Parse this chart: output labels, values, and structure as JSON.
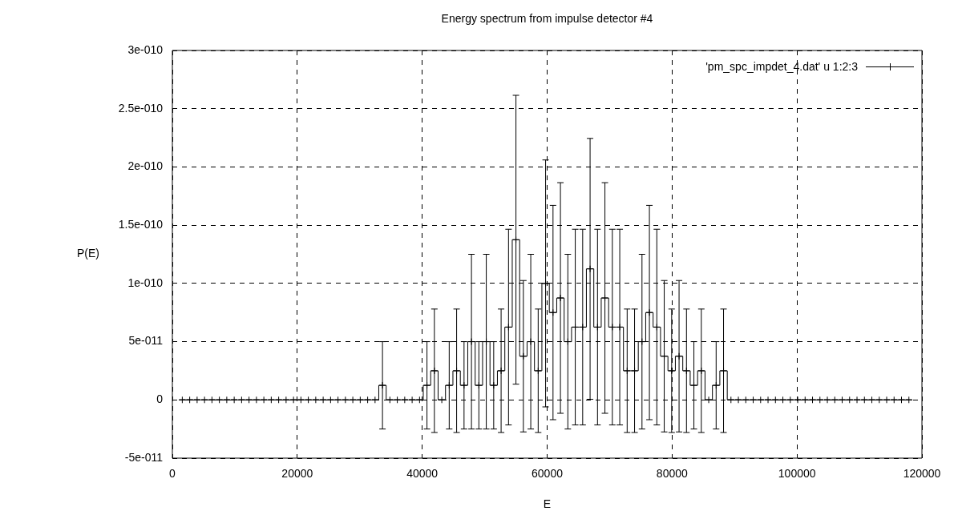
{
  "chart_data": {
    "type": "step",
    "title": "Energy spectrum from impulse detector #4",
    "xlabel": "E",
    "ylabel": "P(E)",
    "x": [
      1590,
      2777,
      3964,
      5151,
      6338,
      7525,
      8712,
      9899,
      11086,
      12273,
      13460,
      14647,
      15834,
      17021,
      18208,
      19395,
      20582,
      21769,
      22956,
      24143,
      25330,
      26517,
      27704,
      28891,
      30078,
      31265,
      32452,
      33639,
      34826,
      36013,
      37200,
      38387,
      39574,
      40761,
      41948,
      43135,
      44322,
      45509,
      46696,
      47883,
      49070,
      50257,
      51444,
      52631,
      53818,
      55005,
      56192,
      57379,
      58566,
      59753,
      60940,
      62127,
      63314,
      64501,
      65688,
      66875,
      68062,
      69249,
      70436,
      71623,
      72810,
      73997,
      75184,
      76371,
      77558,
      78745,
      79932,
      81119,
      82306,
      83493,
      84680,
      85867,
      87054,
      88241,
      89428,
      90615,
      91802,
      92989,
      94176,
      95363,
      96550,
      97737,
      98924,
      100111,
      101298,
      102485,
      103672,
      104859,
      106046,
      107233,
      108420,
      109607,
      110794,
      111981,
      113168,
      114355,
      115542,
      116729,
      117916
    ],
    "series": [
      {
        "name": "'pm_spc_impdet_4.dat' u 1:2:3",
        "color": "#000000",
        "values": [
          0,
          0,
          0,
          0,
          0,
          0,
          0,
          0,
          0,
          0,
          0,
          0,
          0,
          0,
          0,
          0,
          0,
          0,
          0,
          0,
          0,
          0,
          0,
          0,
          0,
          0,
          0,
          1.25e-11,
          0,
          0,
          0,
          0,
          0,
          1.25e-11,
          2.5e-11,
          0,
          1.25e-11,
          2.5e-11,
          1.25e-11,
          5e-11,
          1.25e-11,
          5e-11,
          1.25e-11,
          2.5e-11,
          6.25e-11,
          1.375e-10,
          3.75e-11,
          5e-11,
          2.5e-11,
          1e-10,
          7.5e-11,
          8.75e-11,
          5e-11,
          6.25e-11,
          6.25e-11,
          1.125e-10,
          6.25e-11,
          8.75e-11,
          6.25e-11,
          6.25e-11,
          2.5e-11,
          2.5e-11,
          5e-11,
          7.5e-11,
          6.25e-11,
          3.75e-11,
          2.5e-11,
          3.75e-11,
          2.5e-11,
          1.25e-11,
          2.5e-11,
          0,
          1.25e-11,
          2.5e-11,
          0,
          0,
          0,
          0,
          0,
          0,
          0,
          0,
          0,
          0,
          0,
          0,
          0,
          0,
          0,
          0,
          0,
          0,
          0,
          0,
          0,
          0,
          0,
          0,
          0
        ],
        "errors": [
          0,
          0,
          0,
          0,
          0,
          0,
          0,
          0,
          0,
          0,
          0,
          0,
          0,
          0,
          0,
          0,
          0,
          0,
          0,
          0,
          0,
          0,
          0,
          0,
          0,
          0,
          0,
          3.75e-11,
          0,
          0,
          0,
          0,
          0,
          3.75e-11,
          5.3e-11,
          0,
          3.75e-11,
          5.3e-11,
          3.75e-11,
          7.5e-11,
          3.75e-11,
          7.5e-11,
          3.75e-11,
          5.3e-11,
          8.4e-11,
          1.24e-10,
          6.5e-11,
          7.5e-11,
          5.3e-11,
          1.06e-10,
          9.2e-11,
          9.9e-11,
          7.5e-11,
          8.4e-11,
          8.4e-11,
          1.12e-10,
          8.4e-11,
          9.9e-11,
          8.4e-11,
          8.4e-11,
          5.3e-11,
          5.3e-11,
          7.5e-11,
          9.2e-11,
          8.4e-11,
          6.5e-11,
          5.3e-11,
          6.5e-11,
          5.3e-11,
          3.75e-11,
          5.3e-11,
          0,
          3.75e-11,
          5.3e-11,
          0,
          0,
          0,
          0,
          0,
          0,
          0,
          0,
          0,
          0,
          0,
          0,
          0,
          0,
          0,
          0,
          0,
          0,
          0,
          0,
          0,
          0,
          0,
          0,
          0
        ]
      }
    ],
    "xlim": [
      0,
      120000
    ],
    "ylim": [
      -5e-11,
      3e-10
    ],
    "xticks": [
      0,
      20000,
      40000,
      60000,
      80000,
      100000,
      120000
    ],
    "yticks": [
      {
        "value": -5e-11,
        "label": "-5e-011"
      },
      0,
      {
        "value": 5e-11,
        "label": "5e-011"
      },
      {
        "value": 1e-10,
        "label": "1e-010"
      },
      {
        "value": 1.5e-10,
        "label": "1.5e-010"
      },
      {
        "value": 2e-10,
        "label": "2e-010"
      },
      {
        "value": 2.5e-10,
        "label": "2.5e-010"
      },
      {
        "value": 3e-10,
        "label": "3e-010"
      }
    ],
    "grid": true,
    "legend": "top right",
    "marker": "cross"
  }
}
